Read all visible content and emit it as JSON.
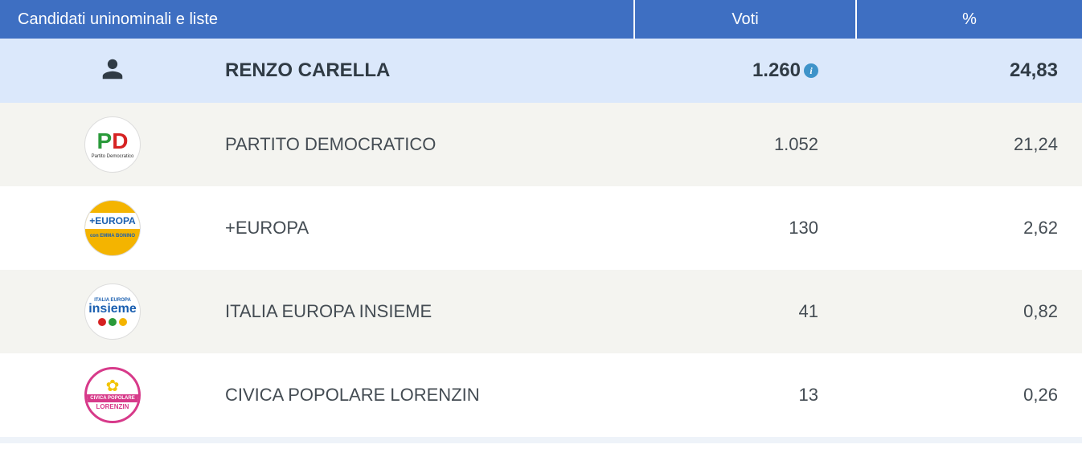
{
  "colors": {
    "header_bg": "#3e6fc2",
    "header_text": "#ffffff",
    "candidate_bg": "#dbe8fb",
    "candidate_text": "#303b45",
    "party_bg_odd": "#f4f4f0",
    "party_bg_even": "#ffffff",
    "party_text": "#444c53",
    "info_icon_bg": "#3e93c9",
    "info_icon_text": "#ffffff",
    "person_icon": "#303b45",
    "footer_bg": "#eef3f9"
  },
  "header": {
    "name_label": "Candidati uninominali e liste",
    "votes_label": "Voti",
    "pct_label": "%"
  },
  "candidate": {
    "name": "RENZO CARELLA",
    "votes": "1.260",
    "pct": "24,83"
  },
  "parties": [
    {
      "name": "PARTITO DEMOCRATICO",
      "votes": "1.052",
      "pct": "21,24",
      "logo": {
        "top_text": "PD",
        "top_color_left": "#2a9a3a",
        "top_color_right": "#d62222",
        "bottom_text": "Partito Democratico",
        "bottom_color": "#333333"
      }
    },
    {
      "name": "+EUROPA",
      "votes": "130",
      "pct": "2,62",
      "logo": {
        "top_text": "+EUROPA",
        "top_color": "#1a5fb0",
        "mid_text": "con EMMA BONINO",
        "mid_color": "#1a5fb0",
        "band_color": "#f4b400"
      }
    },
    {
      "name": "ITALIA EUROPA INSIEME",
      "votes": "41",
      "pct": "0,82",
      "logo": {
        "top_text": "ITALIA EUROPA",
        "top_color": "#1a5fb0",
        "main_text": "insieme",
        "main_color": "#1a5fb0",
        "dots": [
          "#d62222",
          "#2a9a3a",
          "#f4b400"
        ]
      }
    },
    {
      "name": "CIVICA POPOLARE LORENZIN",
      "votes": "13",
      "pct": "0,26",
      "logo": {
        "flower_color": "#f2c400",
        "ring_color": "#d73a8a",
        "mid_text": "CIVICA POPOLARE",
        "mid_bg": "#d73a8a",
        "mid_color": "#ffffff",
        "bottom_text": "LORENZIN",
        "bottom_bg": "#ffffff",
        "bottom_color": "#d73a8a"
      }
    }
  ]
}
